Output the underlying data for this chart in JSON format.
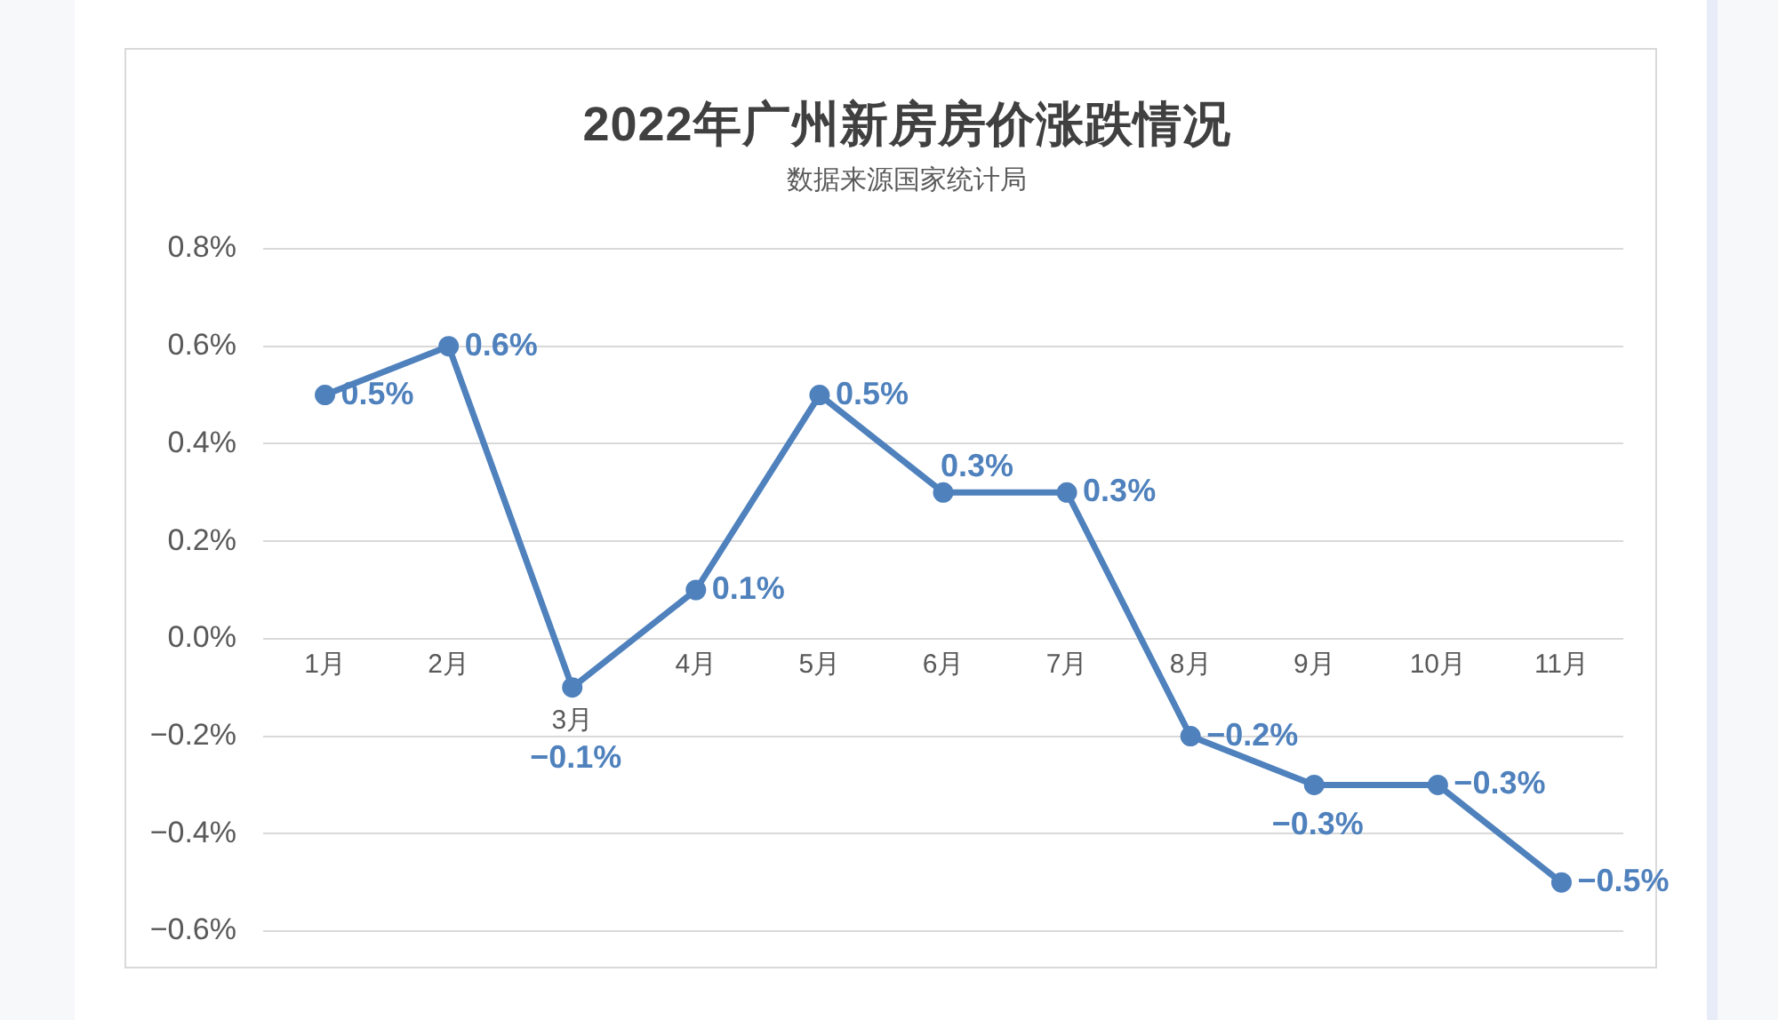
{
  "chart_data": {
    "type": "line",
    "title": "2022年广州新房房价涨跌情况",
    "subtitle": "数据来源国家统计局",
    "categories": [
      "1月",
      "2月",
      "3月",
      "4月",
      "5月",
      "6月",
      "7月",
      "8月",
      "9月",
      "10月",
      "11月"
    ],
    "values": [
      0.5,
      0.6,
      -0.1,
      0.1,
      0.5,
      0.3,
      0.3,
      -0.2,
      -0.3,
      -0.3,
      -0.5
    ],
    "value_labels": [
      "0.5%",
      "0.6%",
      "−0.1%",
      "0.1%",
      "0.5%",
      "0.3%",
      "0.3%",
      "−0.2%",
      "−0.3%",
      "−0.3%",
      "−0.5%"
    ],
    "color": "#4f81bd",
    "ylim": [
      -0.6,
      0.8
    ],
    "yticks": [
      {
        "value": -0.6,
        "label": "−0.6%"
      },
      {
        "value": -0.4,
        "label": "−0.4%"
      },
      {
        "value": -0.2,
        "label": "−0.2%"
      },
      {
        "value": 0,
        "label": "0.0%"
      },
      {
        "value": 0.2,
        "label": "0.2%"
      },
      {
        "value": 0.4,
        "label": "0.4%"
      },
      {
        "value": 0.6,
        "label": "0.6%"
      },
      {
        "value": 0.8,
        "label": "0.8%"
      }
    ],
    "grid": "y",
    "legend": false,
    "marker": "circle",
    "line_style": "solid"
  }
}
